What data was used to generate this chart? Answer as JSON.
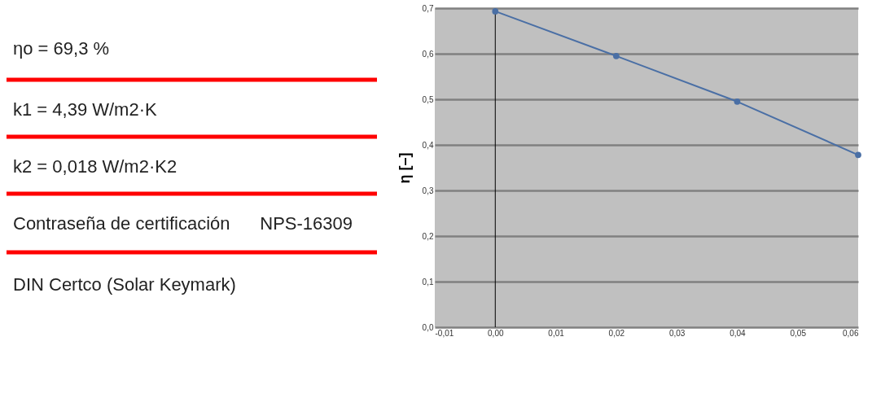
{
  "chart_data": {
    "type": "line",
    "ylabel": "η [–]",
    "annotations": [
      "ηo = 69,3 %",
      "k1 = 4,39 W/m2·K",
      "k2 = 0,018 W/m2·K2",
      "Contraseña de certificación",
      "NPS-16309",
      "DIN Certco (Solar Keymark)"
    ],
    "x": [
      0,
      0.02,
      0.04,
      0.06
    ],
    "series": [
      {
        "color": "#4a6fa5",
        "values": [
          0.693,
          0.595,
          0.495,
          0.378
        ]
      }
    ],
    "xlim": [
      -0.01,
      0.06
    ],
    "xticks": [
      {
        "value": -0.01,
        "label": "-0,01"
      },
      {
        "value": 0,
        "label": "0,00"
      },
      {
        "value": 0.01,
        "label": "0,01"
      },
      {
        "value": 0.02,
        "label": "0,02"
      },
      {
        "value": 0.03,
        "label": "0,03"
      },
      {
        "value": 0.04,
        "label": "0,04"
      },
      {
        "value": 0.05,
        "label": "0,05"
      },
      {
        "value": 0.06,
        "label": "0,06"
      }
    ],
    "ylim": [
      0,
      0.7
    ],
    "yticks": [
      {
        "value": 0,
        "label": "0,0"
      },
      {
        "value": 0.1,
        "label": "0,1"
      },
      {
        "value": 0.2,
        "label": "0,2"
      },
      {
        "value": 0.3,
        "label": "0,3"
      },
      {
        "value": 0.4,
        "label": "0,4"
      },
      {
        "value": 0.5,
        "label": "0,5"
      },
      {
        "value": 0.6,
        "label": "0,6"
      },
      {
        "value": 0.7,
        "label": "0,7"
      }
    ],
    "ref_lines": [
      {
        "axis": "x",
        "value": 0,
        "color": "#000000"
      }
    ],
    "grid": "y",
    "marker": "circle",
    "line_style": "solid"
  }
}
